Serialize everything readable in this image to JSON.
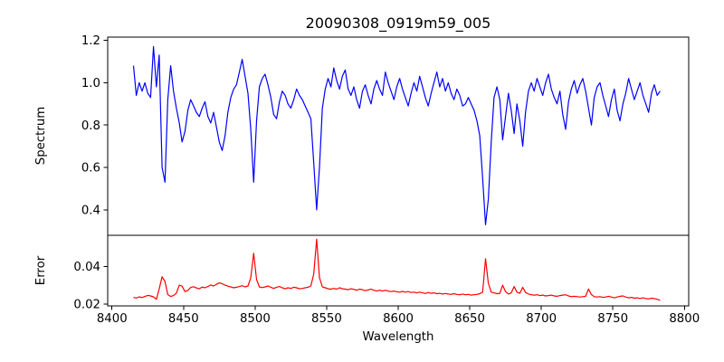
{
  "chart_data": {
    "type": "line",
    "title": "20090308_0919m59_005",
    "xlabel": "Wavelength",
    "grid": false,
    "legend": "none",
    "x_start": 8415,
    "x_step": 2,
    "xlim": [
      8397,
      8803
    ],
    "xticks": [
      8400,
      8450,
      8500,
      8550,
      8600,
      8650,
      8700,
      8750,
      8800
    ],
    "xtick_labels": [
      "8400",
      "8450",
      "8500",
      "8550",
      "8600",
      "8650",
      "8700",
      "8750",
      "8800"
    ],
    "absorption_line_centers": [
      8435,
      8449,
      8477,
      8499,
      8543,
      8661
    ],
    "panels": [
      {
        "name": "spectrum",
        "ylabel": "Spectrum",
        "ylim": [
          0.28,
          1.215
        ],
        "yticks": [
          0.4,
          0.6,
          0.8,
          1.0,
          1.2
        ],
        "ytick_labels": [
          "0.4",
          "0.6",
          "0.8",
          "1.0",
          "1.2"
        ],
        "color": "#0000ff",
        "values": [
          1.08,
          0.94,
          1.0,
          0.96,
          1.0,
          0.95,
          0.93,
          1.17,
          0.98,
          1.13,
          0.6,
          0.53,
          0.92,
          1.08,
          0.96,
          0.88,
          0.81,
          0.72,
          0.77,
          0.87,
          0.92,
          0.89,
          0.86,
          0.84,
          0.88,
          0.91,
          0.84,
          0.81,
          0.86,
          0.79,
          0.72,
          0.68,
          0.75,
          0.86,
          0.93,
          0.97,
          0.99,
          1.05,
          1.11,
          1.03,
          0.95,
          0.78,
          0.53,
          0.82,
          0.98,
          1.02,
          1.04,
          0.99,
          0.93,
          0.85,
          0.83,
          0.91,
          0.96,
          0.94,
          0.9,
          0.88,
          0.92,
          0.97,
          0.94,
          0.92,
          0.89,
          0.86,
          0.83,
          0.62,
          0.4,
          0.6,
          0.88,
          0.97,
          1.02,
          0.98,
          1.07,
          1.01,
          0.97,
          1.03,
          1.06,
          0.97,
          0.94,
          0.98,
          0.92,
          0.88,
          0.96,
          0.99,
          0.94,
          0.9,
          0.97,
          1.01,
          0.97,
          0.94,
          1.05,
          1.0,
          0.96,
          0.92,
          0.98,
          1.02,
          0.97,
          0.93,
          0.89,
          0.95,
          1.0,
          0.96,
          1.03,
          0.98,
          0.93,
          0.89,
          0.95,
          1.0,
          1.05,
          0.98,
          1.02,
          0.96,
          1.0,
          0.95,
          0.92,
          0.97,
          0.94,
          0.89,
          0.9,
          0.93,
          0.9,
          0.87,
          0.82,
          0.75,
          0.55,
          0.33,
          0.45,
          0.72,
          0.93,
          0.98,
          0.92,
          0.73,
          0.84,
          0.95,
          0.87,
          0.76,
          0.9,
          0.82,
          0.7,
          0.86,
          0.96,
          1.0,
          0.96,
          1.02,
          0.98,
          0.94,
          1.0,
          1.04,
          0.97,
          0.93,
          0.9,
          0.96,
          0.85,
          0.78,
          0.91,
          0.97,
          1.01,
          0.95,
          0.99,
          1.02,
          0.96,
          0.88,
          0.8,
          0.93,
          0.98,
          1.0,
          0.94,
          0.89,
          0.84,
          0.92,
          0.97,
          0.87,
          0.82,
          0.9,
          0.95,
          1.02,
          0.97,
          0.92,
          0.96,
          1.0,
          0.94,
          0.9,
          0.86,
          0.95,
          0.99,
          0.94,
          0.96
        ]
      },
      {
        "name": "error",
        "ylabel": "Error",
        "ylim": [
          0.019,
          0.0565
        ],
        "yticks": [
          0.02,
          0.04
        ],
        "ytick_labels": [
          "0.02",
          "0.04"
        ],
        "color": "#ff0000",
        "values": [
          0.0235,
          0.0232,
          0.0238,
          0.0234,
          0.024,
          0.0246,
          0.0243,
          0.0238,
          0.0225,
          0.028,
          0.0345,
          0.032,
          0.025,
          0.024,
          0.0245,
          0.0258,
          0.03,
          0.0295,
          0.0266,
          0.0272,
          0.0288,
          0.0292,
          0.0285,
          0.0281,
          0.029,
          0.0286,
          0.0293,
          0.0301,
          0.0296,
          0.0305,
          0.0312,
          0.0308,
          0.03,
          0.0295,
          0.0291,
          0.0286,
          0.0289,
          0.0293,
          0.0297,
          0.0291,
          0.0296,
          0.034,
          0.047,
          0.033,
          0.0291,
          0.0287,
          0.0291,
          0.0296,
          0.0289,
          0.0283,
          0.0289,
          0.0293,
          0.0286,
          0.0281,
          0.0286,
          0.0283,
          0.0289,
          0.0286,
          0.0281,
          0.0283,
          0.0286,
          0.0289,
          0.0296,
          0.036,
          0.0545,
          0.034,
          0.0291,
          0.0286,
          0.0281,
          0.0279,
          0.0283,
          0.0279,
          0.0286,
          0.0281,
          0.0279,
          0.0276,
          0.0281,
          0.0278,
          0.0273,
          0.0279,
          0.0276,
          0.0271,
          0.0275,
          0.0279,
          0.0273,
          0.0269,
          0.0273,
          0.0269,
          0.0273,
          0.0269,
          0.0266,
          0.0269,
          0.0265,
          0.0263,
          0.0267,
          0.0263,
          0.0266,
          0.0261,
          0.0263,
          0.0259,
          0.0263,
          0.0259,
          0.0256,
          0.0261,
          0.0257,
          0.0259,
          0.0255,
          0.0257,
          0.0253,
          0.0256,
          0.0253,
          0.0251,
          0.0255,
          0.0251,
          0.0249,
          0.0253,
          0.0249,
          0.0251,
          0.0247,
          0.0249,
          0.0251,
          0.0255,
          0.0263,
          0.044,
          0.031,
          0.0263,
          0.0259,
          0.0255,
          0.0257,
          0.03,
          0.0266,
          0.0253,
          0.0259,
          0.0293,
          0.0263,
          0.0257,
          0.0289,
          0.0261,
          0.0253,
          0.0249,
          0.0247,
          0.0249,
          0.0245,
          0.0247,
          0.0243,
          0.0245,
          0.0247,
          0.0243,
          0.0241,
          0.0245,
          0.0247,
          0.0249,
          0.0243,
          0.0239,
          0.0241,
          0.0239,
          0.0237,
          0.0239,
          0.0241,
          0.028,
          0.025,
          0.0239,
          0.0237,
          0.0239,
          0.0235,
          0.0237,
          0.0241,
          0.0237,
          0.0233,
          0.0237,
          0.0241,
          0.0243,
          0.0237,
          0.0233,
          0.0235,
          0.0231,
          0.0233,
          0.0229,
          0.0233,
          0.0229,
          0.0227,
          0.0231,
          0.0229,
          0.0225,
          0.022
        ]
      }
    ]
  }
}
